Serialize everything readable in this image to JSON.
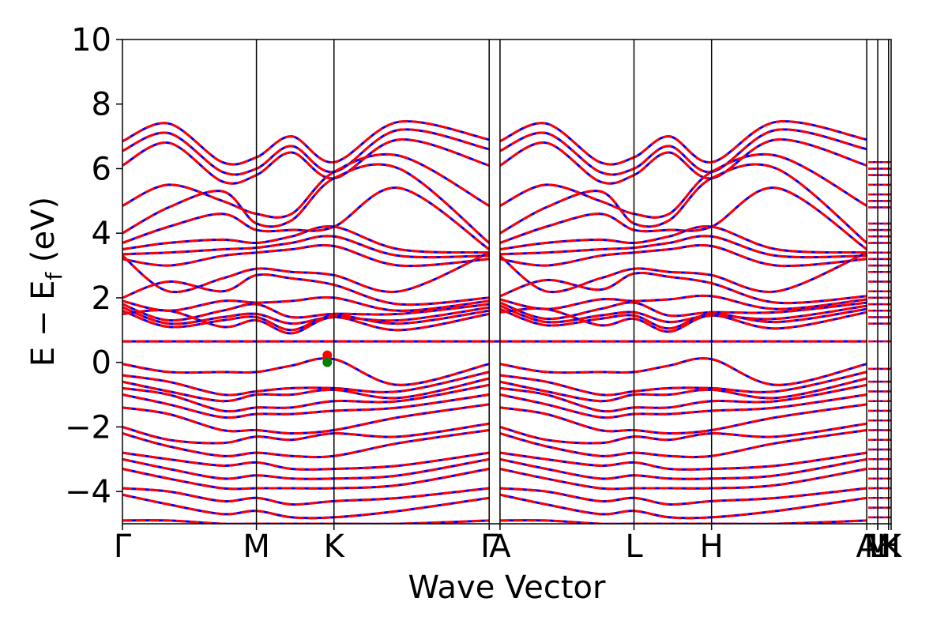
{
  "chart_data": {
    "type": "line",
    "title": "",
    "xlabel": "Wave Vector",
    "ylabel": "E − E_f (eV)",
    "ylabel_parts": {
      "main": "E − E",
      "sub": "f",
      "unit": " (eV)"
    },
    "ylim": [
      -5,
      10
    ],
    "yticks": [
      -4,
      -2,
      0,
      2,
      4,
      6,
      8,
      10
    ],
    "ytick_labels": [
      "−4",
      "−2",
      "0",
      "2",
      "4",
      "6",
      "8",
      "10"
    ],
    "xlim": [
      0,
      1
    ],
    "kpath": [
      {
        "label": "Γ",
        "x": 0.0
      },
      {
        "label": "M",
        "x": 0.1743
      },
      {
        "label": "K",
        "x": 0.2752
      },
      {
        "label": "Γ",
        "x": 0.4771
      },
      {
        "label": "A",
        "x": 0.4912
      },
      {
        "label": "L",
        "x": 0.6655
      },
      {
        "label": "H",
        "x": 0.7664
      },
      {
        "label": "A",
        "x": 0.9683
      },
      {
        "label": "L",
        "x": 0.9826
      },
      {
        "label": "M",
        "x": 0.9826
      },
      {
        "label": "H",
        "x": 0.9967
      },
      {
        "label": "K",
        "x": 1.0
      }
    ],
    "fermi_markers": [
      {
        "x": 0.2665,
        "y": 0.0,
        "color": "#008000"
      },
      {
        "x": 0.2665,
        "y": 0.22,
        "color": "#ff0000"
      }
    ],
    "flat_band": 0.65,
    "series": [
      {
        "style": "solid",
        "color": "#0000ff",
        "width": 3
      },
      {
        "style": "dashed",
        "color": "#ff0000",
        "width": 3
      }
    ],
    "bands": [
      {
        "k": [
          0,
          0.1743,
          0.2752,
          0.4771
        ],
        "e": [
          6.85,
          6.35,
          6.2,
          6.9
        ],
        "mid": [
          [
            0.06,
            7.4
          ],
          [
            0.13,
            6.2
          ],
          [
            0.22,
            7.0
          ],
          [
            0.36,
            7.45
          ]
        ]
      },
      {
        "k": [
          0,
          0.1743,
          0.2752,
          0.4771
        ],
        "e": [
          6.55,
          6.0,
          5.9,
          6.6
        ],
        "mid": [
          [
            0.06,
            7.1
          ],
          [
            0.13,
            5.9
          ],
          [
            0.22,
            6.7
          ],
          [
            0.36,
            7.2
          ]
        ]
      },
      {
        "k": [
          0,
          0.1743,
          0.2752,
          0.4771
        ],
        "e": [
          6.1,
          5.8,
          5.7,
          6.1
        ],
        "mid": [
          [
            0.06,
            6.8
          ],
          [
            0.13,
            5.6
          ],
          [
            0.22,
            6.5
          ],
          [
            0.36,
            6.9
          ]
        ]
      },
      {
        "k": [
          0,
          0.1743,
          0.2752,
          0.4771
        ],
        "e": [
          4.85,
          4.6,
          5.9,
          4.85
        ],
        "mid": [
          [
            0.06,
            5.5
          ],
          [
            0.13,
            5.0
          ],
          [
            0.22,
            4.6
          ],
          [
            0.36,
            6.4
          ]
        ]
      },
      {
        "k": [
          0,
          0.1743,
          0.2752,
          0.4771
        ],
        "e": [
          4.0,
          4.3,
          5.7,
          3.7
        ],
        "mid": [
          [
            0.06,
            4.8
          ],
          [
            0.13,
            5.3
          ],
          [
            0.22,
            4.4
          ],
          [
            0.36,
            6.0
          ]
        ]
      },
      {
        "k": [
          0,
          0.1743,
          0.2752,
          0.4771
        ],
        "e": [
          3.7,
          4.1,
          4.2,
          3.5
        ],
        "mid": [
          [
            0.06,
            4.2
          ],
          [
            0.13,
            4.6
          ],
          [
            0.22,
            4.1
          ],
          [
            0.36,
            5.4
          ]
        ]
      },
      {
        "k": [
          0,
          0.1743,
          0.2752,
          0.4771
        ],
        "e": [
          3.5,
          3.7,
          4.2,
          3.4
        ],
        "mid": [
          [
            0.06,
            3.7
          ],
          [
            0.13,
            3.8
          ],
          [
            0.22,
            3.9
          ],
          [
            0.36,
            3.5
          ]
        ]
      },
      {
        "k": [
          0,
          0.1743,
          0.2752,
          0.4771
        ],
        "e": [
          3.35,
          3.55,
          3.9,
          3.3
        ],
        "mid": [
          [
            0.06,
            3.4
          ],
          [
            0.13,
            3.5
          ],
          [
            0.22,
            3.7
          ],
          [
            0.36,
            3.3
          ]
        ]
      },
      {
        "k": [
          0,
          0.1743,
          0.2752,
          0.4771
        ],
        "e": [
          3.2,
          3.4,
          3.6,
          3.2
        ],
        "mid": [
          [
            0.06,
            3.0
          ],
          [
            0.13,
            3.3
          ],
          [
            0.22,
            3.5
          ],
          [
            0.36,
            3.0
          ]
        ]
      },
      {
        "k": [
          0,
          0.1743,
          0.2752,
          0.4771
        ],
        "e": [
          3.3,
          2.9,
          2.7,
          3.4
        ],
        "mid": [
          [
            0.06,
            2.2
          ],
          [
            0.13,
            2.6
          ],
          [
            0.22,
            2.8
          ],
          [
            0.36,
            2.2
          ]
        ]
      },
      {
        "k": [
          0,
          0.1743,
          0.2752,
          0.4771
        ],
        "e": [
          2.0,
          2.7,
          2.4,
          2.0
        ],
        "mid": [
          [
            0.06,
            2.5
          ],
          [
            0.13,
            2.2
          ],
          [
            0.22,
            2.6
          ],
          [
            0.36,
            1.8
          ]
        ]
      },
      {
        "k": [
          0,
          0.1743,
          0.2752,
          0.4771
        ],
        "e": [
          1.9,
          1.85,
          2.0,
          1.9
        ],
        "mid": [
          [
            0.06,
            1.6
          ],
          [
            0.13,
            1.9
          ],
          [
            0.22,
            1.9
          ],
          [
            0.36,
            1.6
          ]
        ]
      },
      {
        "k": [
          0,
          0.1743,
          0.2752,
          0.4771
        ],
        "e": [
          1.8,
          1.8,
          1.5,
          1.8
        ],
        "mid": [
          [
            0.06,
            1.3
          ],
          [
            0.13,
            1.6
          ],
          [
            0.22,
            1.4
          ],
          [
            0.36,
            1.5
          ]
        ]
      },
      {
        "k": [
          0,
          0.1743,
          0.2752,
          0.4771
        ],
        "e": [
          1.7,
          1.5,
          1.4,
          1.7
        ],
        "mid": [
          [
            0.06,
            1.2
          ],
          [
            0.13,
            1.4
          ],
          [
            0.22,
            1.2
          ],
          [
            0.36,
            1.3
          ]
        ]
      },
      {
        "k": [
          0,
          0.1743,
          0.2752,
          0.4771
        ],
        "e": [
          1.6,
          1.4,
          1.45,
          1.6
        ],
        "mid": [
          [
            0.06,
            1.1
          ],
          [
            0.13,
            1.3
          ],
          [
            0.22,
            1.0
          ],
          [
            0.36,
            1.2
          ]
        ]
      },
      {
        "k": [
          0,
          0.1743,
          0.2752,
          0.4771
        ],
        "e": [
          1.5,
          1.3,
          1.4,
          1.5
        ],
        "mid": [
          [
            0.06,
            1.6
          ],
          [
            0.13,
            1.1
          ],
          [
            0.22,
            0.9
          ],
          [
            0.36,
            1.0
          ]
        ]
      },
      {
        "k": [
          0,
          0.1743,
          0.2752,
          0.4771
        ],
        "e": [
          -0.05,
          -0.3,
          0.1,
          -0.05
        ],
        "mid": [
          [
            0.06,
            -0.3
          ],
          [
            0.13,
            -0.3
          ],
          [
            0.22,
            -0.1
          ],
          [
            0.36,
            -0.7
          ]
        ]
      },
      {
        "k": [
          0,
          0.1743,
          0.2752,
          0.4771
        ],
        "e": [
          -0.4,
          -0.9,
          -0.8,
          -0.3
        ],
        "mid": [
          [
            0.06,
            -0.6
          ],
          [
            0.13,
            -1.0
          ],
          [
            0.22,
            -0.8
          ],
          [
            0.36,
            -0.9
          ]
        ]
      },
      {
        "k": [
          0,
          0.1743,
          0.2752,
          0.4771
        ],
        "e": [
          -0.6,
          -1.0,
          -0.85,
          -0.5
        ],
        "mid": [
          [
            0.06,
            -0.9
          ],
          [
            0.13,
            -1.2
          ],
          [
            0.22,
            -1.0
          ],
          [
            0.36,
            -1.1
          ]
        ]
      },
      {
        "k": [
          0,
          0.1743,
          0.2752,
          0.4771
        ],
        "e": [
          -0.8,
          -1.4,
          -1.2,
          -0.7
        ],
        "mid": [
          [
            0.06,
            -1.0
          ],
          [
            0.13,
            -1.5
          ],
          [
            0.22,
            -1.4
          ],
          [
            0.36,
            -1.2
          ]
        ]
      },
      {
        "k": [
          0,
          0.1743,
          0.2752,
          0.4771
        ],
        "e": [
          -1.0,
          -1.6,
          -1.5,
          -1.0
        ],
        "mid": [
          [
            0.06,
            -1.3
          ],
          [
            0.13,
            -1.7
          ],
          [
            0.22,
            -1.6
          ],
          [
            0.36,
            -1.4
          ]
        ]
      },
      {
        "k": [
          0,
          0.1743,
          0.2752,
          0.4771
        ],
        "e": [
          -1.4,
          -2.1,
          -2.1,
          -1.3
        ],
        "mid": [
          [
            0.06,
            -1.6
          ],
          [
            0.13,
            -2.1
          ],
          [
            0.22,
            -2.2
          ],
          [
            0.36,
            -1.7
          ]
        ]
      },
      {
        "k": [
          0,
          0.1743,
          0.2752,
          0.4771
        ],
        "e": [
          -2.0,
          -2.3,
          -2.2,
          -1.9
        ],
        "mid": [
          [
            0.06,
            -2.4
          ],
          [
            0.13,
            -2.5
          ],
          [
            0.22,
            -2.4
          ],
          [
            0.36,
            -2.3
          ]
        ]
      },
      {
        "k": [
          0,
          0.1743,
          0.2752,
          0.4771
        ],
        "e": [
          -2.2,
          -2.8,
          -2.9,
          -2.1
        ],
        "mid": [
          [
            0.06,
            -2.6
          ],
          [
            0.13,
            -2.9
          ],
          [
            0.22,
            -2.9
          ],
          [
            0.36,
            -2.5
          ]
        ]
      },
      {
        "k": [
          0,
          0.1743,
          0.2752,
          0.4771
        ],
        "e": [
          -2.8,
          -3.1,
          -3.3,
          -2.8
        ],
        "mid": [
          [
            0.06,
            -3.0
          ],
          [
            0.13,
            -3.2
          ],
          [
            0.22,
            -3.3
          ],
          [
            0.36,
            -3.2
          ]
        ]
      },
      {
        "k": [
          0,
          0.1743,
          0.2752,
          0.4771
        ],
        "e": [
          -3.0,
          -3.5,
          -3.6,
          -3.0
        ],
        "mid": [
          [
            0.06,
            -3.3
          ],
          [
            0.13,
            -3.6
          ],
          [
            0.22,
            -3.6
          ],
          [
            0.36,
            -3.5
          ]
        ]
      },
      {
        "k": [
          0,
          0.1743,
          0.2752,
          0.4771
        ],
        "e": [
          -3.3,
          -3.9,
          -3.9,
          -3.3
        ],
        "mid": [
          [
            0.06,
            -3.6
          ],
          [
            0.13,
            -3.9
          ],
          [
            0.22,
            -3.9
          ],
          [
            0.36,
            -3.8
          ]
        ]
      },
      {
        "k": [
          0,
          0.1743,
          0.2752,
          0.4771
        ],
        "e": [
          -3.9,
          -4.2,
          -4.3,
          -3.9
        ],
        "mid": [
          [
            0.06,
            -4.0
          ],
          [
            0.13,
            -4.3
          ],
          [
            0.22,
            -4.4
          ],
          [
            0.36,
            -4.2
          ]
        ]
      },
      {
        "k": [
          0,
          0.1743,
          0.2752,
          0.4771
        ],
        "e": [
          -4.1,
          -4.6,
          -4.8,
          -4.2
        ],
        "mid": [
          [
            0.06,
            -4.4
          ],
          [
            0.13,
            -4.7
          ],
          [
            0.22,
            -4.8
          ],
          [
            0.36,
            -4.6
          ]
        ]
      },
      {
        "k": [
          0,
          0.1743,
          0.2752,
          0.4771
        ],
        "e": [
          -4.9,
          -5.0,
          -5.0,
          -4.9
        ],
        "mid": [
          [
            0.06,
            -4.9
          ],
          [
            0.13,
            -5.0
          ],
          [
            0.22,
            -5.0
          ],
          [
            0.36,
            -5.0
          ]
        ]
      }
    ]
  }
}
